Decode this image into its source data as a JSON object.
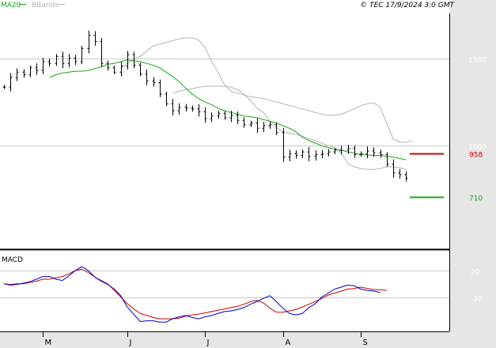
{
  "header": {
    "legend_ma": "MA20",
    "legend_bands": "BBands",
    "copyright": "© TEC 17/9/2024 3:0 GMT"
  },
  "colors": {
    "price": "#000000",
    "ma": "#11aa11",
    "bands": "#b4b4b4",
    "resistance": "#cc0000",
    "support": "#11aa11",
    "macd": "#0000cc",
    "signal": "#cc0000",
    "grid": "#c8c8c8",
    "axis_panel": "#e6e6e6"
  },
  "chart_data": [
    {
      "type": "ohlc",
      "title": "",
      "x_ticks": [
        "M",
        "J",
        "J",
        "A",
        "S"
      ],
      "x_tick_index": [
        6,
        19,
        31,
        43,
        55
      ],
      "y_ticks": [
        1500,
        1000
      ],
      "ylim": [
        415,
        1755
      ],
      "grid": true,
      "levels": [
        {
          "label": "958",
          "value": 958,
          "role": "resistance"
        },
        {
          "label": "710",
          "value": 710,
          "role": "support"
        }
      ],
      "series": [
        {
          "name": "MA20",
          "kind": "line"
        },
        {
          "name": "BBands",
          "kind": "band"
        }
      ],
      "closes": [
        1335,
        1390,
        1420,
        1405,
        1445,
        1430,
        1480,
        1470,
        1510,
        1470,
        1500,
        1480,
        1555,
        1630,
        1595,
        1470,
        1445,
        1420,
        1455,
        1520,
        1460,
        1410,
        1370,
        1360,
        1295,
        1240,
        1200,
        1220,
        1215,
        1210,
        1195,
        1155,
        1170,
        1185,
        1160,
        1175,
        1145,
        1120,
        1130,
        1100,
        1115,
        1120,
        1075,
        935,
        955,
        945,
        965,
        940,
        950,
        955,
        965,
        975,
        975,
        985,
        950,
        955,
        970,
        960,
        950,
        895,
        845,
        835,
        815
      ],
      "ma20": [
        1390,
        1405,
        1415,
        1420,
        1425,
        1425,
        1430,
        1440,
        1450,
        1465,
        1470,
        1480,
        1490,
        1485,
        1480,
        1470,
        1460,
        1445,
        1420,
        1395,
        1365,
        1330,
        1295,
        1270,
        1250,
        1235,
        1215,
        1200,
        1190,
        1180,
        1170,
        1165,
        1160,
        1150,
        1140,
        1130,
        1115,
        1100,
        1080,
        1050,
        1030,
        1015,
        1000,
        990,
        980,
        975,
        965,
        958,
        950,
        948,
        945,
        945,
        940,
        935,
        928,
        920
      ],
      "bb_upper": [
        1440,
        1470,
        1495,
        1510,
        1540,
        1570,
        1580,
        1590,
        1600,
        1610,
        1615,
        1615,
        1605,
        1560,
        1480,
        1420,
        1350,
        1310,
        1300,
        1290,
        1280,
        1275,
        1270,
        1260,
        1250,
        1240,
        1230,
        1220,
        1210,
        1200,
        1190,
        1180,
        1175,
        1175,
        1180,
        1195,
        1210,
        1230,
        1240,
        1245,
        1220,
        1130,
        1040,
        1020,
        1020,
        1030
      ],
      "bb_lower": [
        1300,
        1310,
        1320,
        1325,
        1335,
        1340,
        1340,
        1340,
        1340,
        1335,
        1320,
        1295,
        1260,
        1215,
        1190,
        1140,
        1105,
        1080,
        1070,
        1065,
        1055,
        1040,
        1030,
        1015,
        1000,
        990,
        960,
        900,
        880,
        870,
        865,
        865,
        870,
        880,
        880,
        875,
        865
      ]
    },
    {
      "type": "line",
      "title": "MACD",
      "y_ticks": [
        20,
        -20
      ],
      "ylim": [
        -72,
        50
      ],
      "series": [
        {
          "name": "MACD",
          "values": [
            0,
            -2,
            -1,
            1,
            3,
            7,
            11,
            11,
            7,
            5,
            12,
            20,
            26,
            20,
            10,
            4,
            -1,
            -8,
            -18,
            -35,
            -46,
            -57,
            -56,
            -56,
            -58,
            -58,
            -53,
            -50,
            -48,
            -51,
            -53,
            -50,
            -48,
            -45,
            -42,
            -41,
            -39,
            -36,
            -31,
            -27,
            -22,
            -18,
            -27,
            -37,
            -45,
            -47,
            -45,
            -36,
            -30,
            -20,
            -14,
            -8,
            -5,
            -2,
            -3,
            -8,
            -10,
            -11,
            -13
          ]
        },
        {
          "name": "Signal",
          "values": [
            0,
            -1,
            0,
            0,
            2,
            4,
            7,
            7,
            9,
            11,
            15,
            20,
            22,
            17,
            10,
            5,
            0,
            -10,
            -20,
            -30,
            -38,
            -45,
            -48,
            -51,
            -53,
            -53,
            -53,
            -52,
            -49,
            -47,
            -46,
            -44,
            -42,
            -40,
            -38,
            -36,
            -34,
            -31,
            -27,
            -25,
            -29,
            -37,
            -43,
            -43,
            -41,
            -39,
            -35,
            -31,
            -27,
            -22,
            -17,
            -14,
            -11,
            -8,
            -7,
            -5,
            -7,
            -9,
            -9,
            -10
          ]
        }
      ]
    }
  ]
}
